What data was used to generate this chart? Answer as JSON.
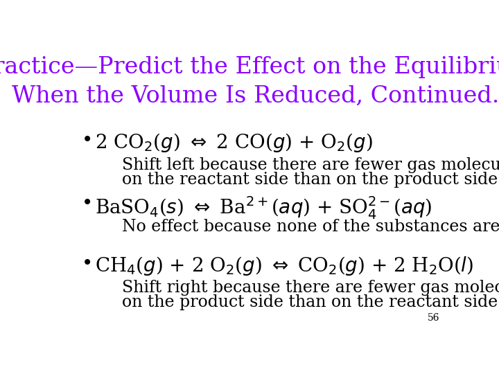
{
  "background_color": "#ffffff",
  "title_line1": "Practice—Predict the Effect on the Equilibrium",
  "title_line2": "When the Volume Is Reduced, Continued.",
  "title_color": "#8B00FF",
  "title_fontsize": 24,
  "body_color": "#000000",
  "body_fontsize": 20,
  "indent_fontsize": 17,
  "page_number": "56",
  "bullet": "•",
  "items": [
    {
      "equation": "2 CO$_2$($g$) $\\Leftrightarrow$ 2 CO($g$) + O$_2$($g$)",
      "explanation_line1": "Shift left because there are fewer gas molecules",
      "explanation_line2": "on the reactant side than on the product side."
    },
    {
      "equation": "BaSO$_4$($s$) $\\Leftrightarrow$ Ba$^{2+}$($aq$) + SO$_4^{2-}$($aq$)",
      "explanation_line1": "No effect because none of the substances are gases.",
      "explanation_line2": ""
    },
    {
      "equation": "CH$_4$($g$) + 2 O$_2$($g$) $\\Leftrightarrow$ CO$_2$($g$) + 2 H$_2$O($l$)",
      "explanation_line1": "Shift right because there are fewer gas molecules",
      "explanation_line2": "on the product side than on the reactant side."
    }
  ]
}
